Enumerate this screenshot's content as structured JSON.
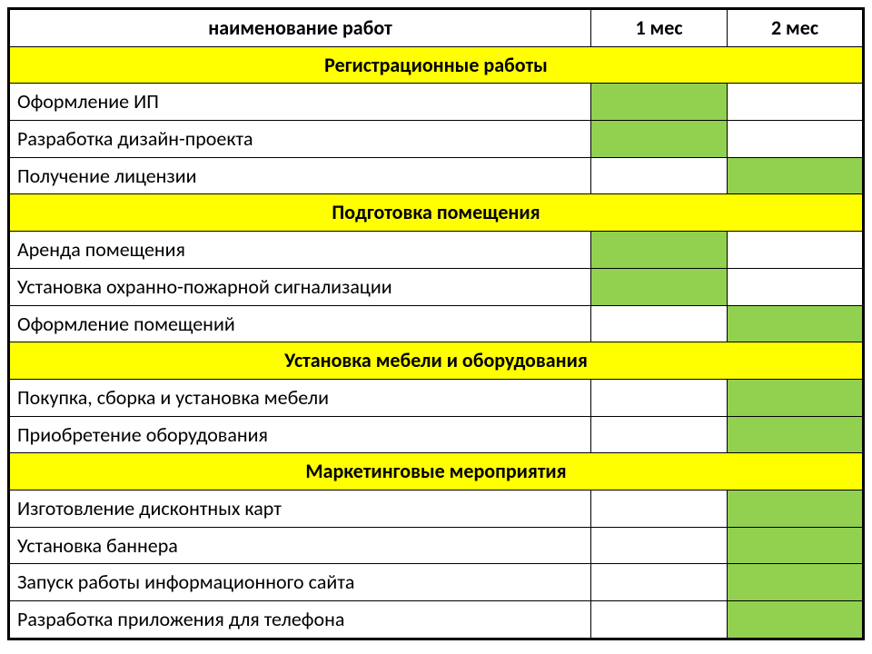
{
  "colors": {
    "section_bg": "#ffff00",
    "fill_bg": "#92d050",
    "empty_bg": "#ffffff",
    "border": "#000000",
    "text": "#000000"
  },
  "table": {
    "type": "table",
    "col_widths_pct": [
      68,
      16,
      16
    ],
    "header": {
      "name": "наименование работ",
      "month1": "1 мес",
      "month2": "2 мес"
    },
    "sections": [
      {
        "title": "Регистрационные работы",
        "rows": [
          {
            "name": "Оформление ИП",
            "m1": true,
            "m2": false
          },
          {
            "name": "Разработка дизайн-проекта",
            "m1": true,
            "m2": false
          },
          {
            "name": "Получение лицензии",
            "m1": false,
            "m2": true
          }
        ]
      },
      {
        "title": "Подготовка помещения",
        "rows": [
          {
            "name": "Аренда помещения",
            "m1": true,
            "m2": false
          },
          {
            "name": "Установка охранно-пожарной сигнализации",
            "m1": true,
            "m2": false
          },
          {
            "name": "Оформление помещений",
            "m1": false,
            "m2": true
          }
        ]
      },
      {
        "title": "Установка мебели и оборудования",
        "rows": [
          {
            "name": "Покупка, сборка и установка мебели",
            "m1": false,
            "m2": true
          },
          {
            "name": "Приобретение оборудования",
            "m1": false,
            "m2": true
          }
        ]
      },
      {
        "title": "Маркетинговые мероприятия",
        "rows": [
          {
            "name": "Изготовление дисконтных карт",
            "m1": false,
            "m2": true
          },
          {
            "name": "Установка баннера",
            "m1": false,
            "m2": true
          },
          {
            "name": "Запуск работы информационного сайта",
            "m1": false,
            "m2": true
          },
          {
            "name": "Разработка приложения для телефона",
            "m1": false,
            "m2": true
          }
        ]
      }
    ]
  },
  "typography": {
    "header_fontsize_pt": 17,
    "section_fontsize_pt": 17,
    "row_fontsize_pt": 17,
    "header_weight": 700,
    "section_weight": 700,
    "row_weight": 400
  }
}
